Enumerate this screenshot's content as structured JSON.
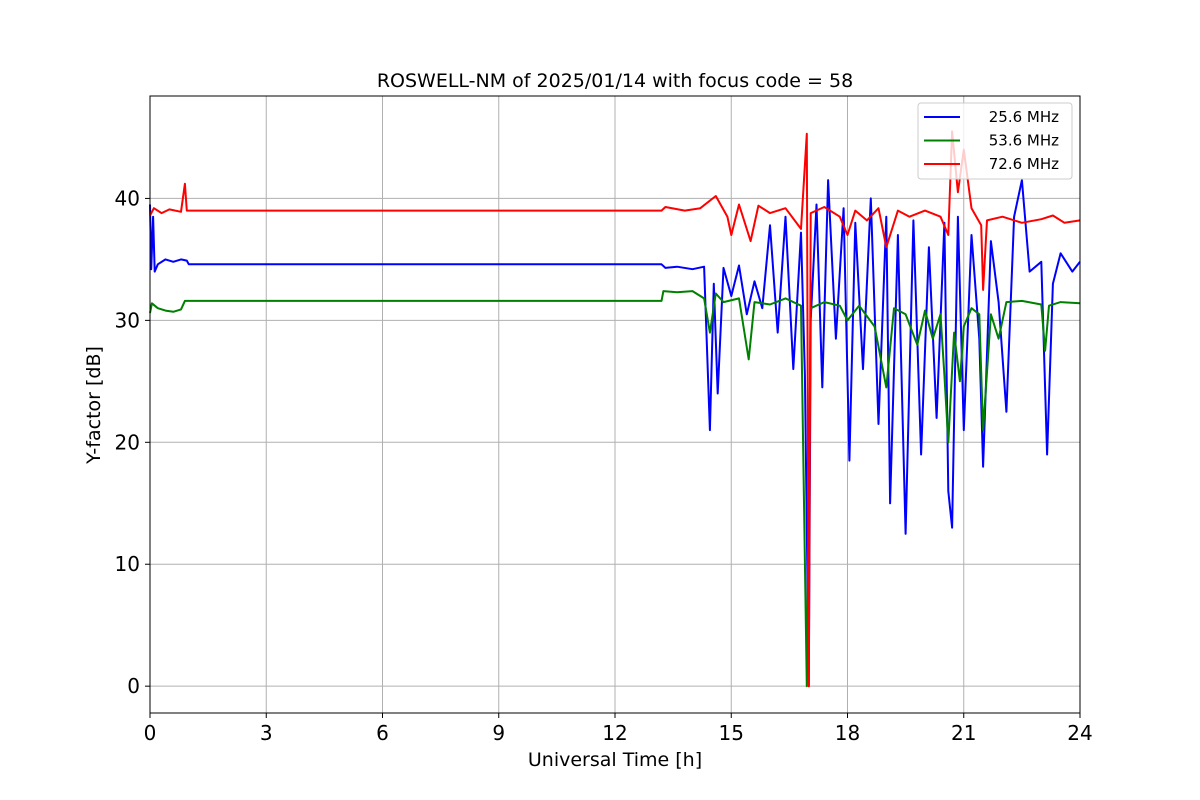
{
  "chart_data": {
    "type": "line",
    "title": "ROSWELL-NM of 2025/01/14 with focus code = 58",
    "xlabel": "Universal Time [h]",
    "ylabel": "Y-factor [dB]",
    "xlim": [
      0,
      24
    ],
    "ylim": [
      -2.2,
      48.4
    ],
    "xticks": [
      "0",
      "3",
      "6",
      "9",
      "12",
      "15",
      "18",
      "21",
      "24"
    ],
    "yticks": [
      "0",
      "10",
      "20",
      "30",
      "40"
    ],
    "grid": true,
    "legend_position": "top-right",
    "series": [
      {
        "name": "25.6 MHz",
        "color": "#0000ff",
        "points": [
          [
            0,
            39.5
          ],
          [
            0.03,
            34.2
          ],
          [
            0.08,
            38.5
          ],
          [
            0.12,
            34.0
          ],
          [
            0.2,
            34.6
          ],
          [
            0.4,
            35.0
          ],
          [
            0.6,
            34.8
          ],
          [
            0.8,
            35.0
          ],
          [
            0.95,
            34.9
          ],
          [
            1.0,
            34.6
          ],
          [
            13.2,
            34.6
          ],
          [
            13.3,
            34.3
          ],
          [
            13.6,
            34.4
          ],
          [
            14.0,
            34.2
          ],
          [
            14.3,
            34.4
          ],
          [
            14.45,
            21.0
          ],
          [
            14.55,
            33.0
          ],
          [
            14.65,
            24.0
          ],
          [
            14.8,
            34.3
          ],
          [
            15.0,
            32.0
          ],
          [
            15.2,
            34.5
          ],
          [
            15.4,
            30.5
          ],
          [
            15.6,
            33.2
          ],
          [
            15.8,
            31.0
          ],
          [
            16.0,
            37.8
          ],
          [
            16.2,
            29.0
          ],
          [
            16.4,
            38.5
          ],
          [
            16.6,
            26.0
          ],
          [
            16.8,
            37.2
          ],
          [
            16.9,
            25.5
          ],
          [
            17.0,
            0.0
          ],
          [
            17.05,
            30.0
          ],
          [
            17.2,
            39.5
          ],
          [
            17.35,
            24.5
          ],
          [
            17.5,
            41.5
          ],
          [
            17.7,
            28.5
          ],
          [
            17.9,
            39.2
          ],
          [
            18.05,
            18.5
          ],
          [
            18.2,
            38.0
          ],
          [
            18.4,
            26.0
          ],
          [
            18.6,
            40.0
          ],
          [
            18.8,
            21.5
          ],
          [
            19.0,
            38.5
          ],
          [
            19.1,
            15.0
          ],
          [
            19.3,
            37.0
          ],
          [
            19.5,
            12.5
          ],
          [
            19.7,
            38.2
          ],
          [
            19.9,
            19.0
          ],
          [
            20.1,
            36.0
          ],
          [
            20.3,
            22.0
          ],
          [
            20.5,
            38.0
          ],
          [
            20.6,
            16.0
          ],
          [
            20.7,
            13.0
          ],
          [
            20.85,
            38.5
          ],
          [
            21.0,
            21.0
          ],
          [
            21.2,
            37.0
          ],
          [
            21.4,
            28.5
          ],
          [
            21.5,
            18.0
          ],
          [
            21.7,
            36.5
          ],
          [
            21.9,
            31.5
          ],
          [
            22.1,
            22.5
          ],
          [
            22.3,
            38.5
          ],
          [
            22.5,
            41.5
          ],
          [
            22.7,
            34.0
          ],
          [
            23.0,
            34.8
          ],
          [
            23.15,
            19.0
          ],
          [
            23.3,
            33.0
          ],
          [
            23.5,
            35.5
          ],
          [
            23.8,
            34.0
          ],
          [
            24.0,
            34.8
          ]
        ]
      },
      {
        "name": "53.6 MHz",
        "color": "#008000",
        "points": [
          [
            0,
            30.6
          ],
          [
            0.05,
            31.4
          ],
          [
            0.2,
            31.0
          ],
          [
            0.4,
            30.8
          ],
          [
            0.6,
            30.7
          ],
          [
            0.8,
            30.9
          ],
          [
            0.9,
            31.6
          ],
          [
            13.2,
            31.6
          ],
          [
            13.25,
            32.4
          ],
          [
            13.6,
            32.3
          ],
          [
            14.0,
            32.4
          ],
          [
            14.3,
            31.8
          ],
          [
            14.45,
            29.0
          ],
          [
            14.6,
            32.2
          ],
          [
            14.8,
            31.5
          ],
          [
            15.2,
            31.8
          ],
          [
            15.45,
            26.8
          ],
          [
            15.6,
            31.5
          ],
          [
            16.0,
            31.3
          ],
          [
            16.4,
            31.8
          ],
          [
            16.8,
            31.2
          ],
          [
            16.95,
            0.0
          ],
          [
            17.05,
            31.0
          ],
          [
            17.4,
            31.5
          ],
          [
            17.8,
            31.2
          ],
          [
            18.0,
            30.0
          ],
          [
            18.3,
            31.2
          ],
          [
            18.7,
            29.5
          ],
          [
            19.0,
            24.5
          ],
          [
            19.2,
            31.0
          ],
          [
            19.5,
            30.5
          ],
          [
            19.8,
            28.0
          ],
          [
            20.0,
            30.8
          ],
          [
            20.2,
            28.5
          ],
          [
            20.4,
            30.5
          ],
          [
            20.5,
            25.5
          ],
          [
            20.6,
            20.0
          ],
          [
            20.75,
            29.0
          ],
          [
            20.9,
            25.0
          ],
          [
            21.0,
            29.5
          ],
          [
            21.2,
            31.0
          ],
          [
            21.4,
            30.5
          ],
          [
            21.5,
            21.0
          ],
          [
            21.7,
            30.5
          ],
          [
            21.9,
            28.5
          ],
          [
            22.1,
            31.5
          ],
          [
            22.5,
            31.6
          ],
          [
            23.0,
            31.3
          ],
          [
            23.1,
            27.5
          ],
          [
            23.2,
            31.2
          ],
          [
            23.5,
            31.5
          ],
          [
            24.0,
            31.4
          ]
        ]
      },
      {
        "name": "72.6 MHz",
        "color": "#ff0000",
        "points": [
          [
            0,
            38.6
          ],
          [
            0.1,
            39.2
          ],
          [
            0.3,
            38.8
          ],
          [
            0.5,
            39.1
          ],
          [
            0.8,
            38.9
          ],
          [
            0.9,
            41.2
          ],
          [
            0.95,
            39.0
          ],
          [
            13.2,
            39.0
          ],
          [
            13.3,
            39.3
          ],
          [
            13.8,
            39.0
          ],
          [
            14.2,
            39.2
          ],
          [
            14.6,
            40.2
          ],
          [
            14.9,
            38.5
          ],
          [
            15.0,
            37.0
          ],
          [
            15.2,
            39.5
          ],
          [
            15.5,
            36.5
          ],
          [
            15.7,
            39.4
          ],
          [
            16.0,
            38.8
          ],
          [
            16.4,
            39.2
          ],
          [
            16.8,
            37.5
          ],
          [
            16.95,
            45.3
          ],
          [
            17.0,
            0.0
          ],
          [
            17.05,
            38.8
          ],
          [
            17.4,
            39.3
          ],
          [
            17.8,
            38.5
          ],
          [
            18.0,
            37.0
          ],
          [
            18.2,
            39.0
          ],
          [
            18.5,
            38.2
          ],
          [
            18.8,
            39.2
          ],
          [
            19.0,
            36.0
          ],
          [
            19.3,
            39.0
          ],
          [
            19.6,
            38.5
          ],
          [
            20.0,
            39.0
          ],
          [
            20.4,
            38.5
          ],
          [
            20.6,
            37.0
          ],
          [
            20.7,
            45.5
          ],
          [
            20.85,
            40.5
          ],
          [
            21.0,
            44.0
          ],
          [
            21.2,
            39.2
          ],
          [
            21.45,
            37.8
          ],
          [
            21.5,
            32.5
          ],
          [
            21.6,
            38.2
          ],
          [
            22.0,
            38.5
          ],
          [
            22.5,
            38.0
          ],
          [
            23.0,
            38.3
          ],
          [
            23.3,
            38.6
          ],
          [
            23.6,
            38.0
          ],
          [
            24.0,
            38.2
          ]
        ]
      }
    ]
  }
}
